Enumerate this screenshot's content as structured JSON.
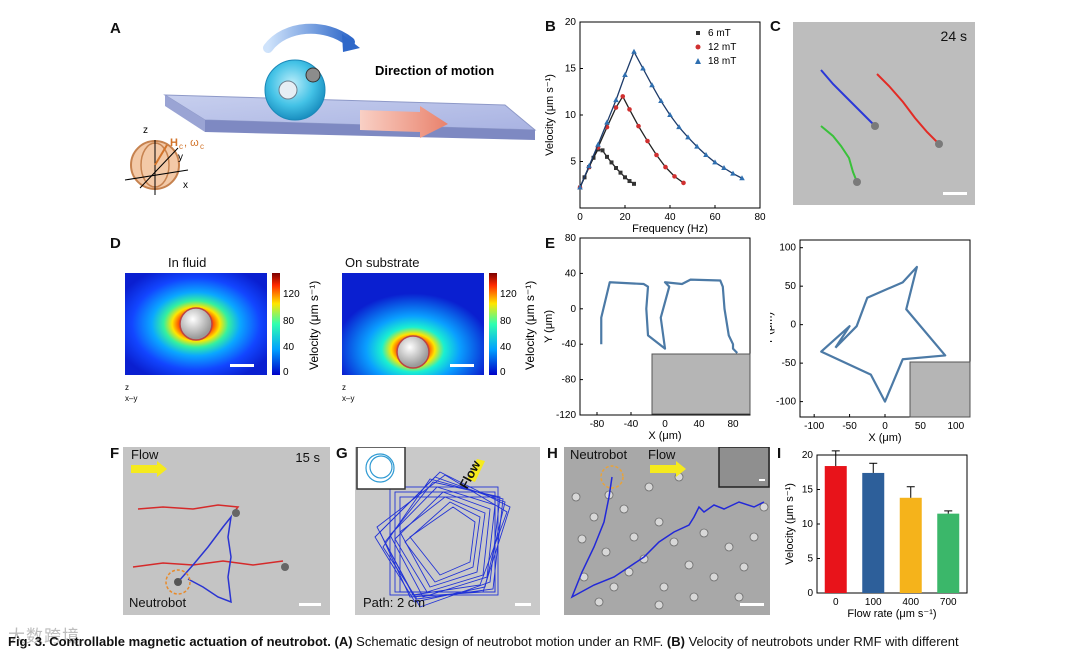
{
  "panels": {
    "A": "A",
    "B": "B",
    "C": "C",
    "D": "D",
    "E": "E",
    "F": "F",
    "G": "G",
    "H": "H",
    "I": "I"
  },
  "panel_a": {
    "direction": "Direction of motion",
    "field_label": "H",
    "field_sub": "c",
    "omega": ", ω",
    "omega_sub": "c",
    "z": "z",
    "y": "y",
    "x": "x"
  },
  "panel_b": {
    "ylabel": "Velocity (μm s⁻¹)",
    "xlabel": "Frequency (Hz)",
    "legend": [
      "6  mT",
      "12 mT",
      "18 mT"
    ]
  },
  "panel_c": {
    "time": "24 s"
  },
  "panel_d": {
    "titles": [
      "In fluid",
      "On substrate"
    ],
    "colorbar_label": "Velocity (μm s⁻¹)",
    "colorbar_ticks": [
      "120",
      "80",
      "40",
      "0"
    ],
    "axis_z": "z",
    "axis_xy": "x–y"
  },
  "panel_e": {
    "xlabel": "X (μm)",
    "ylabel": "Y (μm)"
  },
  "panel_f": {
    "flow": "Flow",
    "time": "15 s",
    "label": "Neutrobot"
  },
  "panel_g": {
    "flow": "Flow",
    "path": "Path: 2 cm"
  },
  "panel_h": {
    "neutrobot": "Neutrobot",
    "flow": "Flow"
  },
  "watermark": "大数跨境",
  "caption": {
    "fig": "Fig. 3.",
    "title": "Controllable magnetic actuation of neutrobot.",
    "a_letter": "(A)",
    "a_text": "Schematic design of neutrobot motion under an RMF.",
    "b_letter": "(B)",
    "b_text": "Velocity of neutrobots under RMF with different"
  },
  "chart_data": [
    {
      "panel": "B",
      "type": "line",
      "title": "",
      "xlabel": "Frequency (Hz)",
      "ylabel": "Velocity (μm s⁻¹)",
      "xlim": [
        0,
        80
      ],
      "ylim": [
        0,
        20
      ],
      "xticks": [
        0,
        20,
        40,
        60,
        80
      ],
      "yticks": [
        5,
        10,
        15,
        20
      ],
      "series": [
        {
          "name": "6  mT",
          "color": "#333333",
          "x": [
            0,
            2,
            4,
            6,
            8,
            10,
            12,
            14,
            16,
            18,
            20,
            22,
            24
          ],
          "y": [
            2.2,
            3.3,
            4.4,
            5.4,
            6.3,
            6.2,
            5.5,
            4.9,
            4.3,
            3.8,
            3.3,
            2.9,
            2.6
          ]
        },
        {
          "name": "12 mT",
          "color": "#d03030",
          "x": [
            0,
            4,
            8,
            12,
            16,
            19,
            22,
            26,
            30,
            34,
            38,
            42,
            46
          ],
          "y": [
            2.2,
            4.4,
            6.5,
            8.7,
            10.8,
            12.0,
            10.6,
            8.8,
            7.2,
            5.7,
            4.4,
            3.4,
            2.7
          ]
        },
        {
          "name": "18 mT",
          "color": "#2f6fb0",
          "x": [
            0,
            4,
            8,
            12,
            16,
            20,
            24,
            28,
            32,
            36,
            40,
            44,
            48,
            52,
            56,
            60,
            64,
            68,
            72
          ],
          "y": [
            2.2,
            4.5,
            6.8,
            9.2,
            11.6,
            14.3,
            16.8,
            15.0,
            13.2,
            11.5,
            10.0,
            8.7,
            7.6,
            6.6,
            5.7,
            4.9,
            4.3,
            3.7,
            3.2
          ]
        }
      ]
    },
    {
      "panel": "E-left",
      "type": "line",
      "xlabel": "X (μm)",
      "ylabel": "Y (μm)",
      "xlim": [
        -100,
        100
      ],
      "ylim": [
        -120,
        80
      ],
      "xticks": [
        -80,
        -40,
        0,
        40,
        80
      ],
      "yticks": [
        -120,
        -80,
        -40,
        0,
        40,
        80
      ],
      "series": [
        {
          "name": "path",
          "x": [
            -75,
            -75,
            -65,
            -25,
            -20,
            -22,
            -20,
            0,
            -5,
            5,
            0,
            20,
            30,
            65,
            68,
            70,
            75,
            80,
            80,
            85
          ],
          "y": [
            -40,
            -10,
            30,
            28,
            25,
            0,
            -30,
            -45,
            -10,
            25,
            30,
            28,
            33,
            32,
            25,
            0,
            -30,
            -40,
            -45,
            -50
          ]
        }
      ]
    },
    {
      "panel": "E-right",
      "type": "line",
      "xlabel": "X (μm)",
      "ylabel": "Y (μm)",
      "xlim": [
        -120,
        120
      ],
      "ylim": [
        -120,
        110
      ],
      "xticks": [
        -100,
        -50,
        0,
        50,
        100
      ],
      "yticks": [
        -100,
        -50,
        0,
        50,
        100
      ],
      "series": [
        {
          "name": "star",
          "x": [
            -70,
            -40,
            -25,
            25,
            45,
            30,
            85,
            25,
            0,
            -20,
            -90,
            -50,
            -70
          ],
          "y": [
            -30,
            -2,
            35,
            55,
            75,
            20,
            -40,
            -45,
            -100,
            -65,
            -35,
            -2,
            -30
          ]
        }
      ]
    },
    {
      "panel": "I",
      "type": "bar",
      "categories": [
        "0",
        "100",
        "400",
        "700"
      ],
      "values": [
        18.4,
        17.4,
        13.8,
        11.5
      ],
      "errors": [
        2.2,
        1.4,
        1.6,
        0.4
      ],
      "colors": [
        "#e8131a",
        "#2d5f9a",
        "#f5b31b",
        "#3bb76a"
      ],
      "xlabel": "Flow rate (μm s⁻¹)",
      "ylabel": "Velocity (μm s⁻¹)",
      "ylim": [
        0,
        20
      ],
      "yticks": [
        0,
        5,
        10,
        15,
        20
      ]
    }
  ]
}
